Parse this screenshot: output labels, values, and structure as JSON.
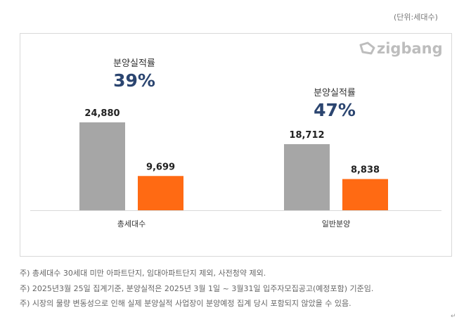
{
  "unit_label": "(단위:세대수)",
  "logo_text": "zigbang",
  "colors": {
    "total": "#a6a6a6",
    "sold": "#ff6a13",
    "rate": "#2b4570"
  },
  "chart_data": {
    "type": "bar",
    "categories": [
      "총세대수",
      "일반분양"
    ],
    "series": [
      {
        "values": [
          24880,
          18712
        ]
      },
      {
        "values": [
          9699,
          8838
        ]
      }
    ],
    "value_labels": [
      [
        "24,880",
        "18,712"
      ],
      [
        "9,699",
        "8,838"
      ]
    ],
    "annotations": [
      {
        "label": "분양실적률",
        "value": "39%"
      },
      {
        "label": "분양실적률",
        "value": "47%"
      }
    ],
    "ylim": [
      0,
      24880
    ],
    "grid": false
  },
  "notes": [
    "주) 총세대수 30세대 미만 아파트단지, 임대아파트단지 제외, 사전청약 제외.",
    "주) 2025년3월 25일 집계기준, 분양실적은 2025년 3월 1일 ~ 3월31일 입주자모집공고(예정포함) 기준임.",
    "주) 시장의 물량 변동성으로 인해 실제 분양실적 사업장이 분양예정 집계 당시 포함되지 않았을 수 있음."
  ],
  "return_mark": "↵"
}
